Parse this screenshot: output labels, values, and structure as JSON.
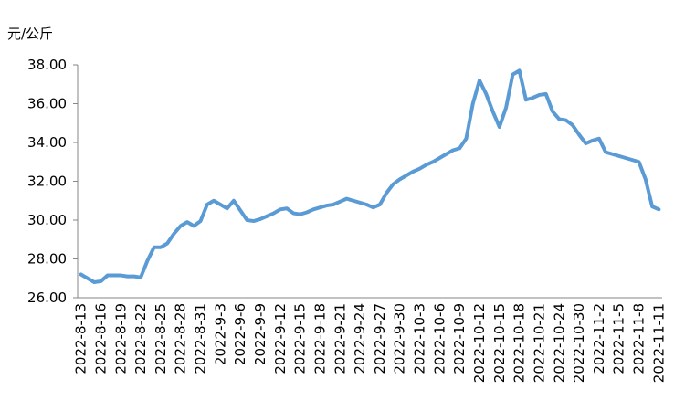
{
  "chart_data": {
    "type": "line",
    "y_label": "元/公斤",
    "categories": [
      "2022-8-13",
      null,
      null,
      "2022-8-16",
      null,
      null,
      "2022-8-19",
      null,
      null,
      "2022-8-22",
      null,
      null,
      "2022-8-25",
      null,
      null,
      "2022-8-28",
      null,
      null,
      "2022-8-31",
      null,
      null,
      "2022-9-3",
      null,
      null,
      "2022-9-6",
      null,
      null,
      "2022-9-9",
      null,
      null,
      "2022-9-12",
      null,
      null,
      "2022-9-15",
      null,
      null,
      "2022-9-18",
      null,
      null,
      "2022-9-21",
      null,
      null,
      "2022-9-24",
      null,
      null,
      "2022-9-27",
      null,
      null,
      "2022-9-30",
      null,
      null,
      "2022-10-3",
      null,
      null,
      "2022-10-6",
      null,
      null,
      "2022-10-9",
      null,
      null,
      "2022-10-12",
      null,
      null,
      "2022-10-15",
      null,
      null,
      "2022-10-18",
      null,
      null,
      "2022-10-21",
      null,
      null,
      "2022-10-24",
      null,
      null,
      "2022-10-30",
      null,
      null,
      "2022-11-2",
      null,
      null,
      "2022-11-5",
      null,
      null,
      "2022-11-8",
      null,
      null,
      "2022-11-11"
    ],
    "values": [
      27.2,
      27.0,
      26.8,
      26.85,
      27.15,
      27.15,
      27.15,
      27.1,
      27.1,
      27.05,
      27.9,
      28.6,
      28.6,
      28.8,
      29.3,
      29.7,
      29.9,
      29.7,
      29.95,
      30.8,
      31.0,
      30.8,
      30.6,
      31.0,
      30.5,
      30.0,
      29.95,
      30.05,
      30.2,
      30.35,
      30.55,
      30.6,
      30.35,
      30.3,
      30.4,
      30.55,
      30.65,
      30.75,
      30.8,
      30.95,
      31.1,
      31.0,
      30.9,
      30.8,
      30.65,
      30.8,
      31.4,
      31.85,
      32.1,
      32.3,
      32.5,
      32.65,
      32.85,
      33.0,
      33.2,
      33.4,
      33.6,
      33.7,
      34.2,
      36.0,
      37.2,
      36.5,
      35.6,
      34.8,
      35.8,
      37.5,
      37.7,
      36.2,
      36.3,
      36.45,
      36.5,
      35.6,
      35.2,
      35.15,
      34.9,
      34.4,
      33.95,
      34.1,
      34.2,
      33.5,
      33.4,
      33.3,
      33.2,
      33.1,
      33.0,
      32.1,
      30.7,
      30.55
    ],
    "color": "#5b9bd5",
    "ylim": [
      26,
      38
    ],
    "yticks": [
      {
        "value": 26,
        "label": "26.00"
      },
      {
        "value": 28,
        "label": "28.00"
      },
      {
        "value": 30,
        "label": "30.00"
      },
      {
        "value": 32,
        "label": "32.00"
      },
      {
        "value": 34,
        "label": "34.00"
      },
      {
        "value": 36,
        "label": "36.00"
      },
      {
        "value": 38,
        "label": "38.00"
      }
    ]
  }
}
